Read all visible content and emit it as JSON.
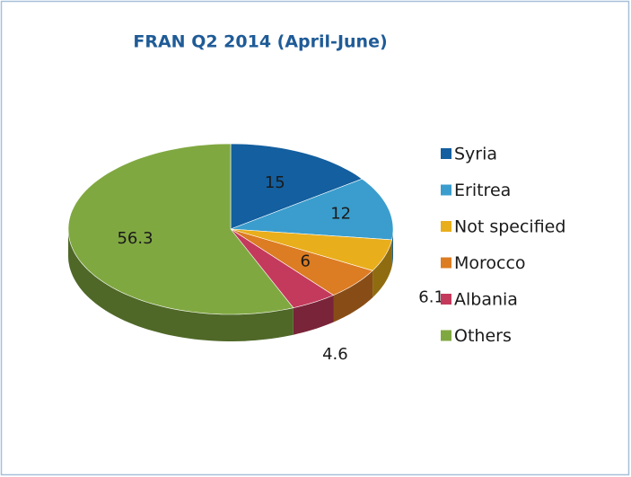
{
  "chart_data": {
    "type": "pie3d",
    "title": "FRAN Q2 2014 (April-June)",
    "categories": [
      "Syria",
      "Eritrea",
      "Not specified",
      "Morocco",
      "Albania",
      "Others"
    ],
    "values": [
      15,
      12,
      6.1,
      6,
      4.6,
      56.3
    ],
    "colors": [
      "#135f9f",
      "#3a9dcd",
      "#e9ae1c",
      "#dc7c23",
      "#c43a5c",
      "#80a841"
    ],
    "legend": "right"
  }
}
